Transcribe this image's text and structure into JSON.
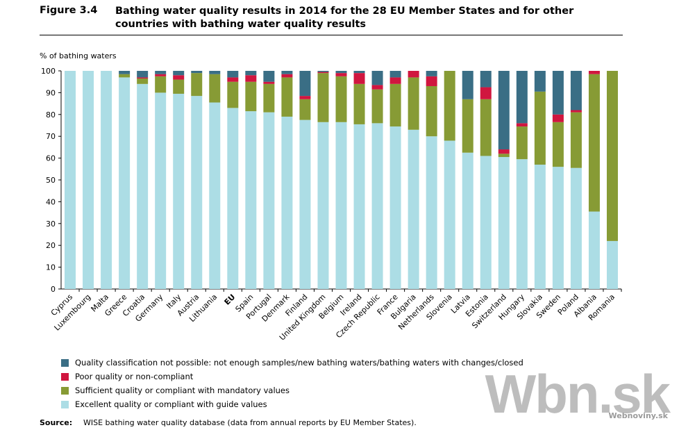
{
  "figure_number": "Figure 3.4",
  "title": "Bathing water quality results in 2014 for the 28 EU Member States and for other countries with bathing water quality results",
  "source_label": "Source:",
  "source_text": "WISE bathing water quality database (data from annual reports by EU Member States).",
  "watermark": "Wbn.sk",
  "watermark_sub": "Webnoviny.sk",
  "chart_data": {
    "type": "bar",
    "stacked": true,
    "ylabel": "% of bathing waters",
    "ylim": [
      0,
      100
    ],
    "yticks": [
      0,
      10,
      20,
      30,
      40,
      50,
      60,
      70,
      80,
      90,
      100
    ],
    "grid": false,
    "legend_placement": "bottom",
    "categories": [
      "Cyprus",
      "Luxembourg",
      "Malta",
      "Greece",
      "Croatia",
      "Germany",
      "Italy",
      "Austria",
      "Lithuania",
      "EU",
      "Spain",
      "Portugal",
      "Denmark",
      "Finland",
      "United Kingdom",
      "Belgium",
      "Ireland",
      "Czech Republic",
      "France",
      "Bulgaria",
      "Netherlands",
      "Slovenia",
      "Latvia",
      "Estonia",
      "Switzerland",
      "Hungary",
      "Slovakia",
      "Sweden",
      "Poland",
      "Albania",
      "Romania"
    ],
    "bold_category": "EU",
    "series": [
      {
        "name": "Excellent quality or compliant with guide values",
        "color": "#acdde5",
        "values": [
          100,
          100,
          100,
          97,
          94,
          90,
          89.5,
          88.5,
          85.5,
          83,
          81.5,
          81,
          79,
          77.5,
          76.5,
          76.5,
          75.5,
          76,
          74.5,
          73,
          70,
          68,
          62.5,
          61,
          60.5,
          59.5,
          57,
          56,
          55.5,
          35.5,
          22
        ]
      },
      {
        "name": "Sufficient quality or compliant with mandatory values",
        "color": "#879b35",
        "values": [
          0,
          0,
          0,
          1.5,
          2.5,
          7.5,
          6.5,
          10.5,
          13,
          12,
          13.5,
          13,
          18,
          9.5,
          22.5,
          21,
          18.5,
          15.5,
          19.5,
          24,
          23,
          32,
          24.5,
          26,
          1.5,
          15,
          33.5,
          20.5,
          25.5,
          63,
          78
        ]
      },
      {
        "name": "Poor quality or non-compliant",
        "color": "#d0163f",
        "values": [
          0,
          0,
          0,
          0,
          0.5,
          1,
          2,
          0,
          0,
          2,
          3,
          1,
          1.5,
          1.5,
          0.5,
          1.5,
          5,
          2,
          3,
          3,
          4.5,
          0,
          0,
          5.5,
          2,
          1.5,
          0,
          3.5,
          1,
          1.5,
          0
        ]
      },
      {
        "name": "Quality classification not possible: not enough samples/new bathing waters/bathing waters with changes/closed",
        "color": "#3a6e85",
        "values": [
          0,
          0,
          0,
          1.5,
          3,
          1.5,
          2,
          1,
          1.5,
          3,
          2,
          5,
          1.5,
          11.5,
          0.5,
          1,
          1,
          6.5,
          3,
          0,
          2.5,
          0,
          13,
          7.5,
          36,
          24,
          9.5,
          20,
          18,
          0,
          0
        ]
      }
    ],
    "legend_order": [
      3,
      2,
      1,
      0
    ]
  }
}
